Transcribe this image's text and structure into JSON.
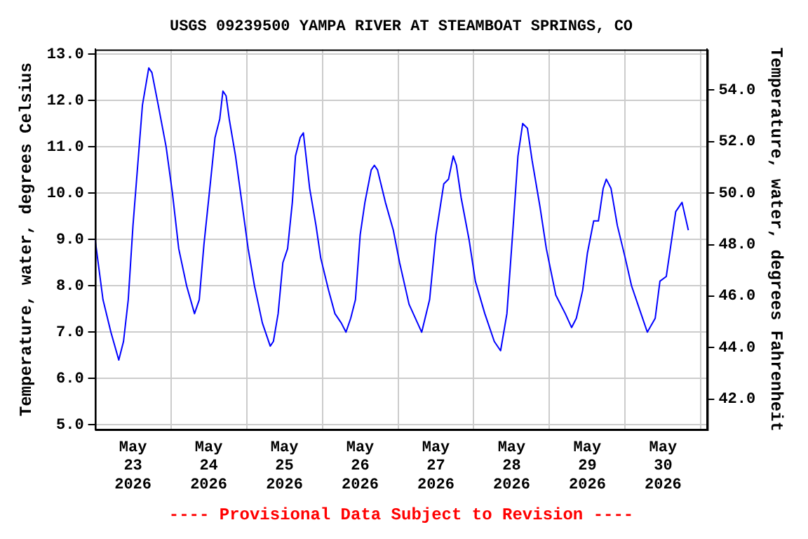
{
  "chart_data": {
    "type": "line",
    "title": "USGS 09239500 YAMPA RIVER AT STEAMBOAT SPRINGS, CO",
    "ylabel": "Temperature, water, degrees Celsius",
    "y2label": "Temperature, water, degrees Fahrenheit",
    "annotations": [
      "---- Provisional Data Subject to Revision ----"
    ],
    "xlim": [
      "2026-05-23T00:00",
      "2026-05-31T02:00"
    ],
    "xticks": [
      {
        "value": "2026-05-23T12:00",
        "label": "May\n23\n2026"
      },
      {
        "value": "2026-05-24T00:00",
        "label": null
      },
      {
        "value": "2026-05-24T12:00",
        "label": "May\n24\n2026"
      },
      {
        "value": "2026-05-25T00:00",
        "label": null
      },
      {
        "value": "2026-05-25T12:00",
        "label": "May\n25\n2026"
      },
      {
        "value": "2026-05-26T00:00",
        "label": null
      },
      {
        "value": "2026-05-26T12:00",
        "label": "May\n26\n2026"
      },
      {
        "value": "2026-05-27T00:00",
        "label": null
      },
      {
        "value": "2026-05-27T12:00",
        "label": "May\n27\n2026"
      },
      {
        "value": "2026-05-28T00:00",
        "label": null
      },
      {
        "value": "2026-05-28T12:00",
        "label": "May\n28\n2026"
      },
      {
        "value": "2026-05-29T00:00",
        "label": null
      },
      {
        "value": "2026-05-29T12:00",
        "label": "May\n29\n2026"
      },
      {
        "value": "2026-05-30T00:00",
        "label": null
      },
      {
        "value": "2026-05-30T12:00",
        "label": "May\n30\n2026"
      },
      {
        "value": "2026-05-31T00:00",
        "label": null
      }
    ],
    "ylim": [
      4.9,
      13.1
    ],
    "yticks": [
      {
        "value": 5,
        "label": "5.0"
      },
      {
        "value": 6,
        "label": "6.0"
      },
      {
        "value": 7,
        "label": "7.0"
      },
      {
        "value": 8,
        "label": "8.0"
      },
      {
        "value": 9,
        "label": "9.0"
      },
      {
        "value": 10,
        "label": "10.0"
      },
      {
        "value": 11,
        "label": "11.0"
      },
      {
        "value": 12,
        "label": "12.0"
      },
      {
        "value": 13,
        "label": "13.0"
      }
    ],
    "y2lim": [
      40.82,
      55.58
    ],
    "y2ticks": [
      {
        "value": 42,
        "label": "42.0"
      },
      {
        "value": 44,
        "label": "44.0"
      },
      {
        "value": 46,
        "label": "46.0"
      },
      {
        "value": 48,
        "label": "48.0"
      },
      {
        "value": 50,
        "label": "50.0"
      },
      {
        "value": 52,
        "label": "52.0"
      },
      {
        "value": 54,
        "label": "54.0"
      }
    ],
    "grid": true,
    "legend": false,
    "marker": "none",
    "line_style": "solid",
    "series": [
      {
        "color": "#0000ff",
        "x": [
          "2026-05-23T00:00",
          "2026-05-23T02:30",
          "2026-05-23T05:00",
          "2026-05-23T07:30",
          "2026-05-23T09:00",
          "2026-05-23T10:30",
          "2026-05-23T12:00",
          "2026-05-23T13:30",
          "2026-05-23T15:00",
          "2026-05-23T17:00",
          "2026-05-23T18:00",
          "2026-05-23T20:00",
          "2026-05-23T22:30",
          "2026-05-24T00:30",
          "2026-05-24T02:30",
          "2026-05-24T05:00",
          "2026-05-24T07:30",
          "2026-05-24T09:00",
          "2026-05-24T10:30",
          "2026-05-24T12:30",
          "2026-05-24T14:00",
          "2026-05-24T15:30",
          "2026-05-24T16:30",
          "2026-05-24T17:30",
          "2026-05-24T18:30",
          "2026-05-24T20:30",
          "2026-05-24T22:30",
          "2026-05-25T00:30",
          "2026-05-25T02:30",
          "2026-05-25T05:00",
          "2026-05-25T07:30",
          "2026-05-25T08:30",
          "2026-05-25T10:00",
          "2026-05-25T11:30",
          "2026-05-25T13:00",
          "2026-05-25T14:30",
          "2026-05-25T15:30",
          "2026-05-25T17:00",
          "2026-05-25T18:00",
          "2026-05-25T18:30",
          "2026-05-25T20:00",
          "2026-05-25T22:00",
          "2026-05-25T23:30",
          "2026-05-26T02:00",
          "2026-05-26T04:00",
          "2026-05-26T06:00",
          "2026-05-26T07:30",
          "2026-05-26T09:00",
          "2026-05-26T10:30",
          "2026-05-26T12:00",
          "2026-05-26T13:30",
          "2026-05-26T15:30",
          "2026-05-26T16:30",
          "2026-05-26T17:30",
          "2026-05-26T20:00",
          "2026-05-26T22:30",
          "2026-05-27T00:30",
          "2026-05-27T02:30",
          "2026-05-27T03:30",
          "2026-05-27T07:30",
          "2026-05-27T10:00",
          "2026-05-27T12:00",
          "2026-05-27T14:30",
          "2026-05-27T16:00",
          "2026-05-27T17:30",
          "2026-05-27T18:30",
          "2026-05-27T20:00",
          "2026-05-27T22:30",
          "2026-05-28T00:30",
          "2026-05-28T03:30",
          "2026-05-28T06:30",
          "2026-05-28T08:30",
          "2026-05-28T10:30",
          "2026-05-28T12:30",
          "2026-05-28T14:00",
          "2026-05-28T15:30",
          "2026-05-28T17:00",
          "2026-05-28T18:30",
          "2026-05-28T21:00",
          "2026-05-28T23:00",
          "2026-05-29T02:00",
          "2026-05-29T05:00",
          "2026-05-29T07:00",
          "2026-05-29T08:30",
          "2026-05-29T10:30",
          "2026-05-29T12:00",
          "2026-05-29T14:00",
          "2026-05-29T15:30",
          "2026-05-29T17:00",
          "2026-05-29T18:00",
          "2026-05-29T19:30",
          "2026-05-29T21:30",
          "2026-05-30T00:00",
          "2026-05-30T02:00",
          "2026-05-30T05:00",
          "2026-05-30T07:00",
          "2026-05-30T09:30",
          "2026-05-30T11:00",
          "2026-05-30T13:00",
          "2026-05-30T14:30",
          "2026-05-30T16:00",
          "2026-05-30T18:00",
          "2026-05-30T20:00"
        ],
        "values": [
          9.0,
          7.7,
          7.0,
          6.4,
          6.8,
          7.7,
          9.3,
          10.6,
          11.9,
          12.7,
          12.6,
          11.9,
          11.0,
          10.0,
          8.8,
          8.0,
          7.4,
          7.7,
          8.9,
          10.2,
          11.2,
          11.6,
          12.2,
          12.1,
          11.6,
          10.8,
          9.8,
          8.8,
          8.0,
          7.2,
          6.7,
          6.8,
          7.4,
          8.5,
          8.8,
          9.8,
          10.8,
          11.2,
          11.3,
          11.0,
          10.1,
          9.3,
          8.6,
          7.9,
          7.4,
          7.2,
          7.0,
          7.3,
          7.7,
          9.1,
          9.8,
          10.5,
          10.6,
          10.5,
          9.8,
          9.2,
          8.5,
          7.9,
          7.6,
          7.0,
          7.7,
          9.1,
          10.2,
          10.3,
          10.8,
          10.6,
          9.9,
          9.0,
          8.1,
          7.4,
          6.8,
          6.6,
          7.4,
          9.3,
          10.8,
          11.5,
          11.4,
          10.7,
          9.7,
          8.8,
          7.8,
          7.4,
          7.1,
          7.3,
          7.9,
          8.7,
          9.4,
          9.4,
          10.1,
          10.3,
          10.1,
          9.3,
          8.6,
          8.0,
          7.4,
          7.0,
          7.3,
          8.1,
          8.2,
          8.9,
          9.6,
          9.8,
          9.2
        ]
      }
    ]
  }
}
